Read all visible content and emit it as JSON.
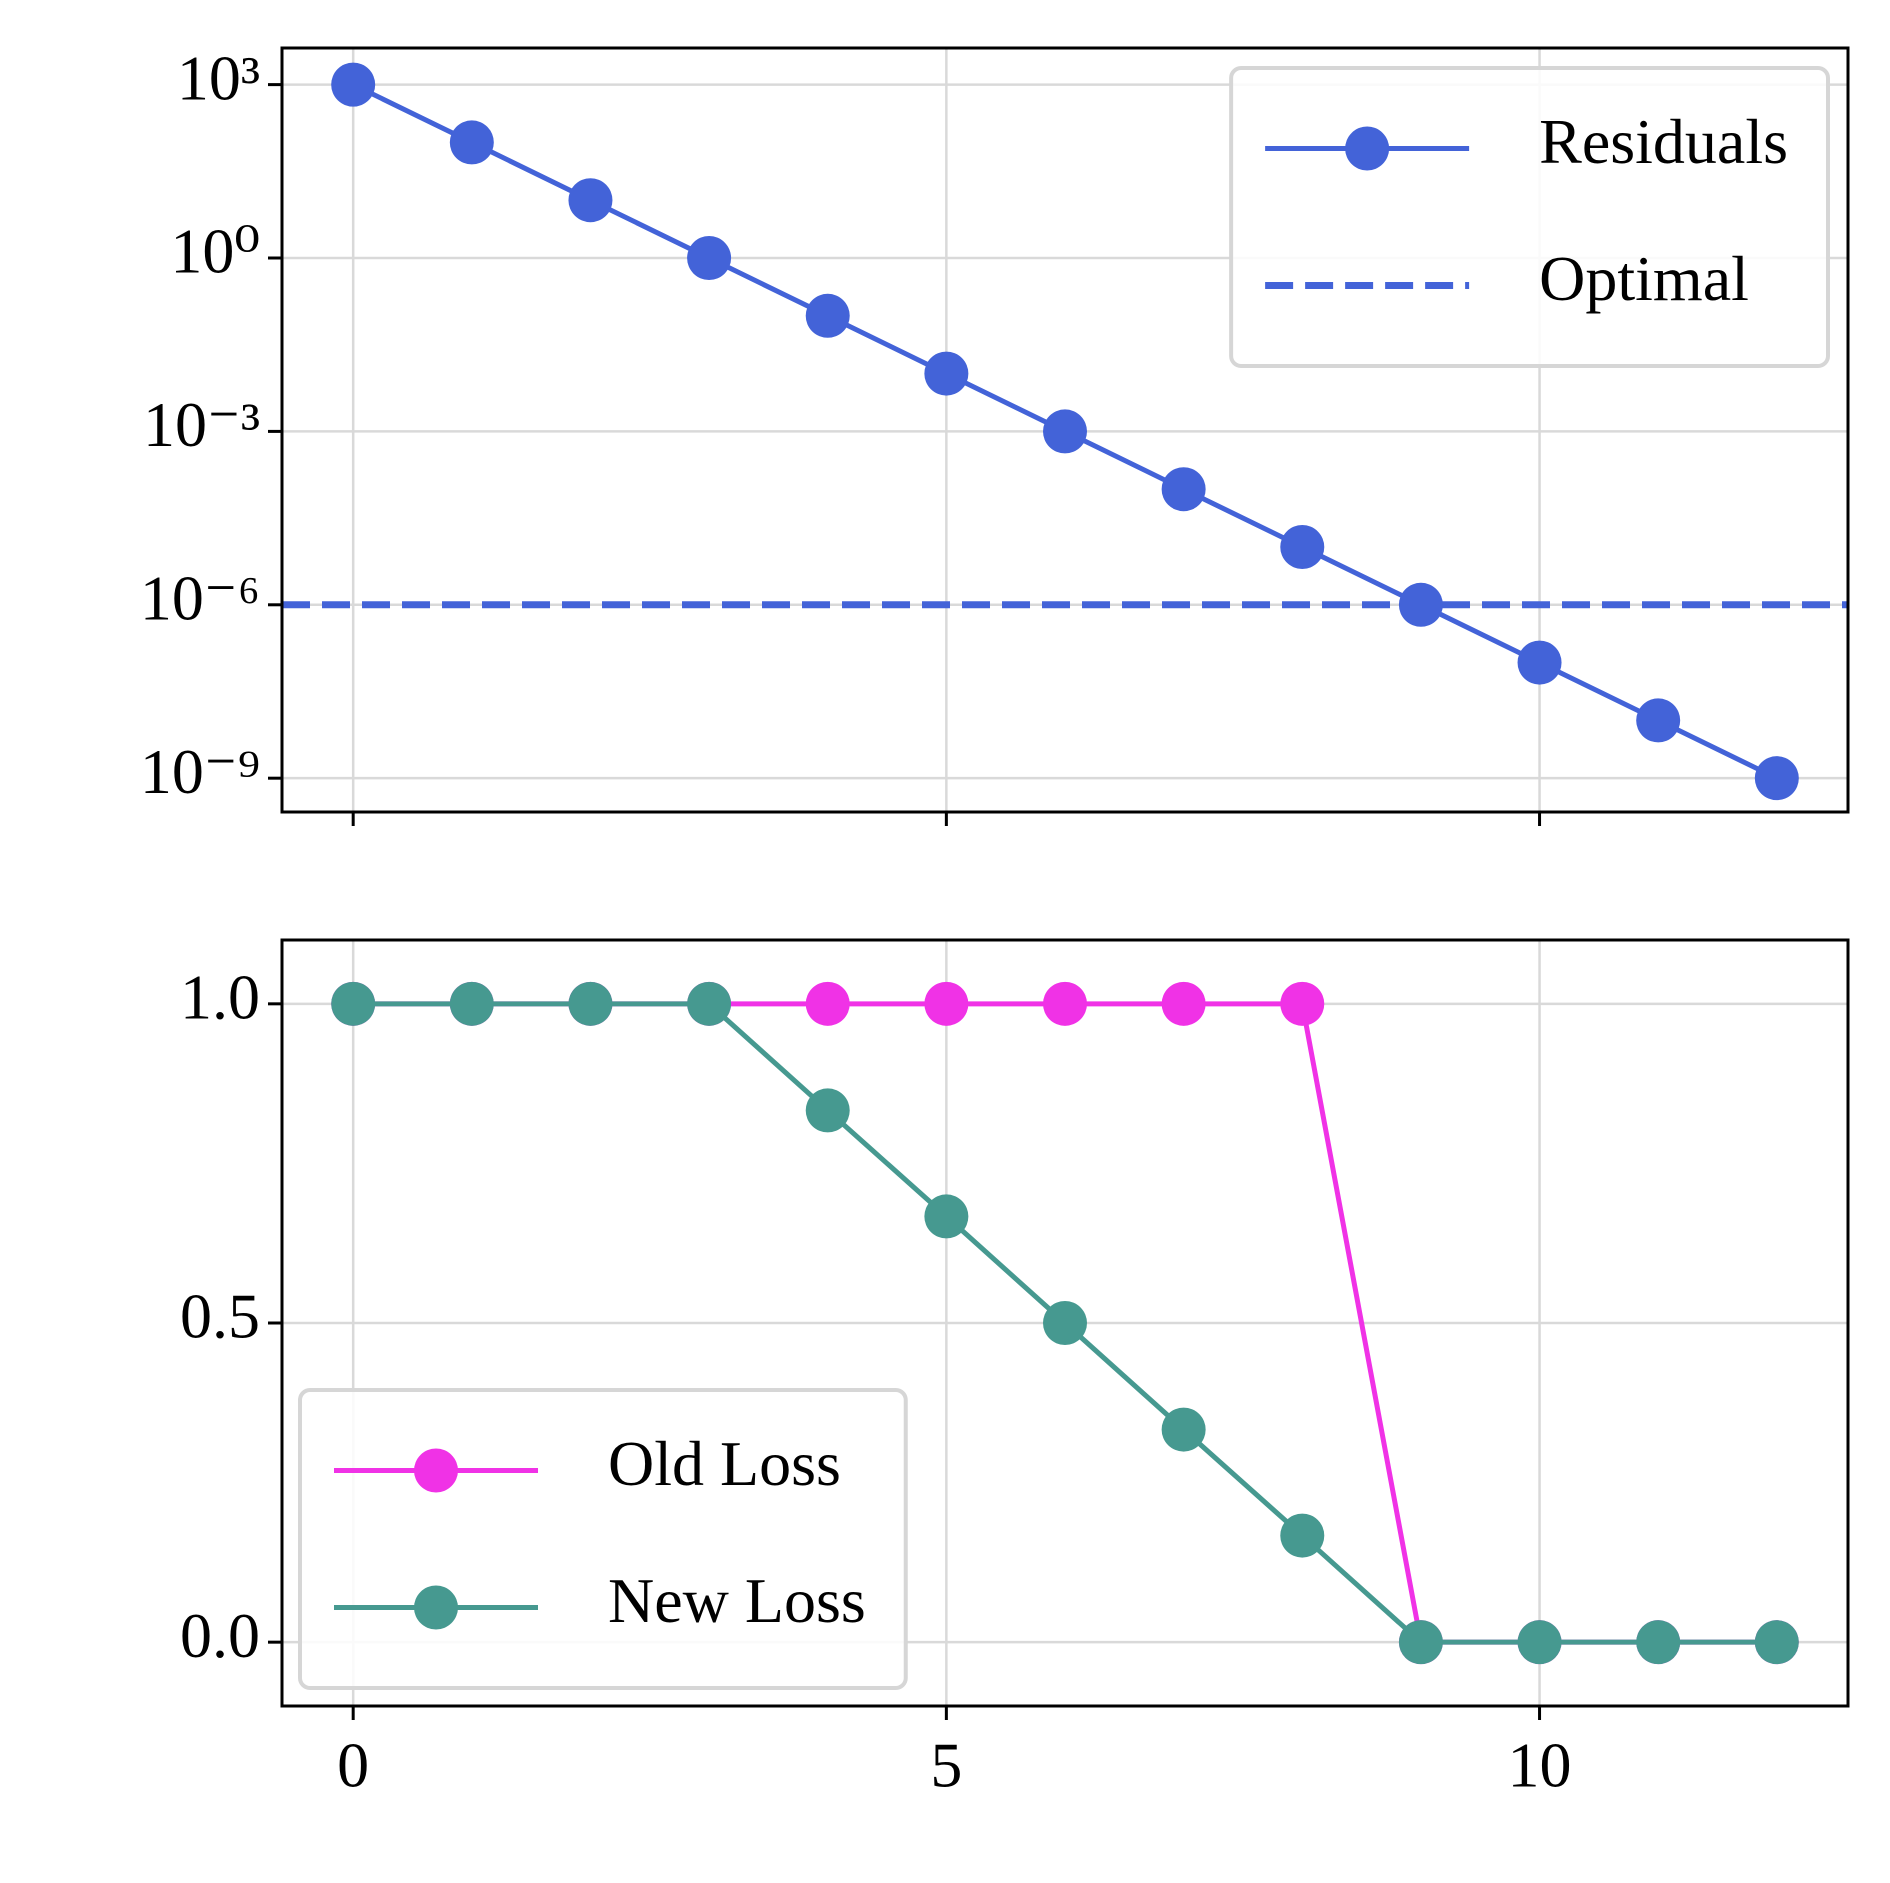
{
  "chart_data": [
    {
      "type": "line",
      "yscale": "log",
      "grid": true,
      "legend_loc": "upper right",
      "show_xticklabels": false,
      "x": [
        0,
        1,
        2,
        3,
        4,
        5,
        6,
        7,
        8,
        9,
        10,
        11,
        12
      ],
      "series": [
        {
          "name": "Residuals",
          "color": "#4363d8",
          "marker": "o",
          "values": [
            1000,
            100,
            10,
            1,
            0.1,
            0.01,
            0.001,
            0.0001,
            1e-05,
            1e-06,
            1e-07,
            1e-08,
            1e-09
          ]
        }
      ],
      "hlines": [
        {
          "name": "Optimal",
          "color": "#4363d8",
          "linestyle": "dashed",
          "value": 1e-06
        }
      ],
      "xlim": [
        -0.6,
        12.6
      ],
      "xticks": [
        0,
        5,
        10
      ],
      "ylim": [
        2.6e-10,
        4300
      ],
      "yticks": [
        {
          "value": 1000,
          "label": "10³"
        },
        {
          "value": 1,
          "label": "10⁰"
        },
        {
          "value": 0.001,
          "label": "10⁻³"
        },
        {
          "value": 1e-06,
          "label": "10⁻⁶"
        },
        {
          "value": 1e-09,
          "label": "10⁻⁹"
        }
      ]
    },
    {
      "type": "line",
      "yscale": "linear",
      "grid": true,
      "legend_loc": "lower left",
      "show_xticklabels": true,
      "x": [
        0,
        1,
        2,
        3,
        4,
        5,
        6,
        7,
        8,
        9,
        10,
        11,
        12
      ],
      "series": [
        {
          "name": "Old Loss",
          "color": "#f032e6",
          "marker": "o",
          "values": [
            1,
            1,
            1,
            1,
            1,
            1,
            1,
            1,
            1,
            0,
            0,
            0,
            0
          ]
        },
        {
          "name": "New Loss",
          "color": "#469990",
          "marker": "o",
          "values": [
            1,
            1,
            1,
            1,
            0.833,
            0.667,
            0.5,
            0.333,
            0.167,
            0,
            0,
            0,
            0
          ]
        }
      ],
      "hlines": [],
      "xlim": [
        -0.6,
        12.6
      ],
      "xticks": [
        0,
        5,
        10
      ],
      "ylim": [
        -0.1,
        1.1
      ],
      "yticks": [
        {
          "value": 0,
          "label": "0.0"
        },
        {
          "value": 0.5,
          "label": "0.5"
        },
        {
          "value": 1,
          "label": "1.0"
        }
      ]
    }
  ]
}
